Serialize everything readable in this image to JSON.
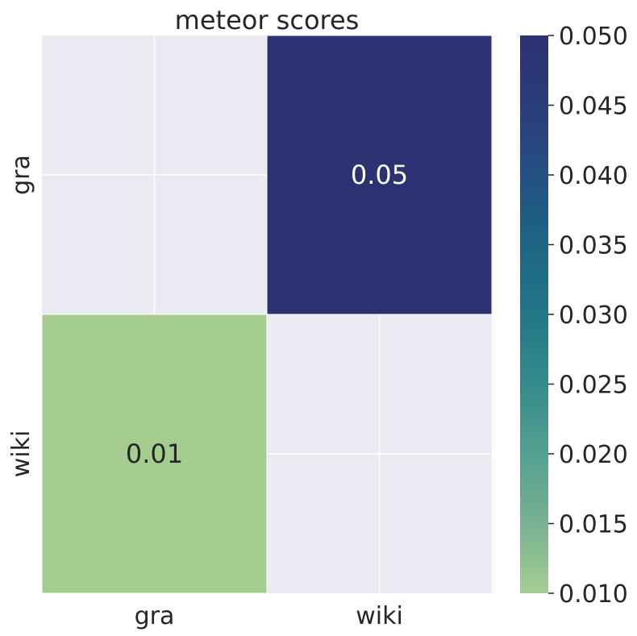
{
  "chart_data": {
    "type": "heatmap",
    "title": "meteor scores",
    "x_categories": [
      "gra",
      "wiki"
    ],
    "y_categories": [
      "gra",
      "wiki"
    ],
    "cells": [
      {
        "row": 0,
        "col": 1,
        "value": 0.05,
        "label": "0.05"
      },
      {
        "row": 1,
        "col": 0,
        "value": 0.01,
        "label": "0.01"
      }
    ],
    "missing_color": "#eaeaf2",
    "grid_color": "#ffffff",
    "colorbar": {
      "vmin": 0.01,
      "vmax": 0.05,
      "ticks": [
        "0.010",
        "0.015",
        "0.020",
        "0.025",
        "0.030",
        "0.035",
        "0.040",
        "0.045",
        "0.050"
      ],
      "colormap": "crest",
      "stops": [
        "#a5cd90",
        "#78b193",
        "#55a090",
        "#348b8b",
        "#227787",
        "#1d6585",
        "#235082",
        "#2b3c7a",
        "#2c3172"
      ]
    },
    "annotation_colors": {
      "light_cell": "#262626",
      "dark_cell": "#ffffff"
    }
  }
}
